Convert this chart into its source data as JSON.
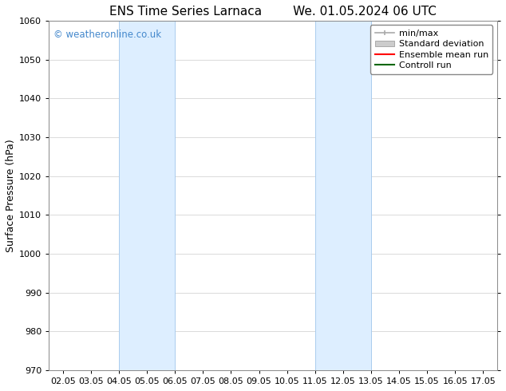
{
  "title_left": "ENS Time Series Larnaca",
  "title_right": "We. 01.05.2024 06 UTC",
  "ylabel": "Surface Pressure (hPa)",
  "ylim": [
    970,
    1060
  ],
  "yticks": [
    970,
    980,
    990,
    1000,
    1010,
    1020,
    1030,
    1040,
    1050,
    1060
  ],
  "xtick_labels": [
    "02.05",
    "03.05",
    "04.05",
    "05.05",
    "06.05",
    "07.05",
    "08.05",
    "09.05",
    "10.05",
    "11.05",
    "12.05",
    "13.05",
    "14.05",
    "15.05",
    "16.05",
    "17.05"
  ],
  "xtick_positions": [
    0,
    1,
    2,
    3,
    4,
    5,
    6,
    7,
    8,
    9,
    10,
    11,
    12,
    13,
    14,
    15
  ],
  "xlim": [
    -0.5,
    15.5
  ],
  "shade1_xmin": 2,
  "shade1_xmax": 4,
  "shade2_xmin": 9,
  "shade2_xmax": 11,
  "shade_color": "#ddeeff",
  "shade_edge_color": "#aaccee",
  "watermark": "© weatheronline.co.uk",
  "watermark_color": "#4488cc",
  "legend_labels": [
    "min/max",
    "Standard deviation",
    "Ensemble mean run",
    "Controll run"
  ],
  "legend_line_color": "#aaaaaa",
  "legend_patch_color": "#cccccc",
  "legend_red": "#ff0000",
  "legend_green": "#006600",
  "bg_color": "#ffffff",
  "grid_color": "#cccccc",
  "title_fontsize": 11,
  "tick_fontsize": 8,
  "ylabel_fontsize": 9,
  "legend_fontsize": 8
}
